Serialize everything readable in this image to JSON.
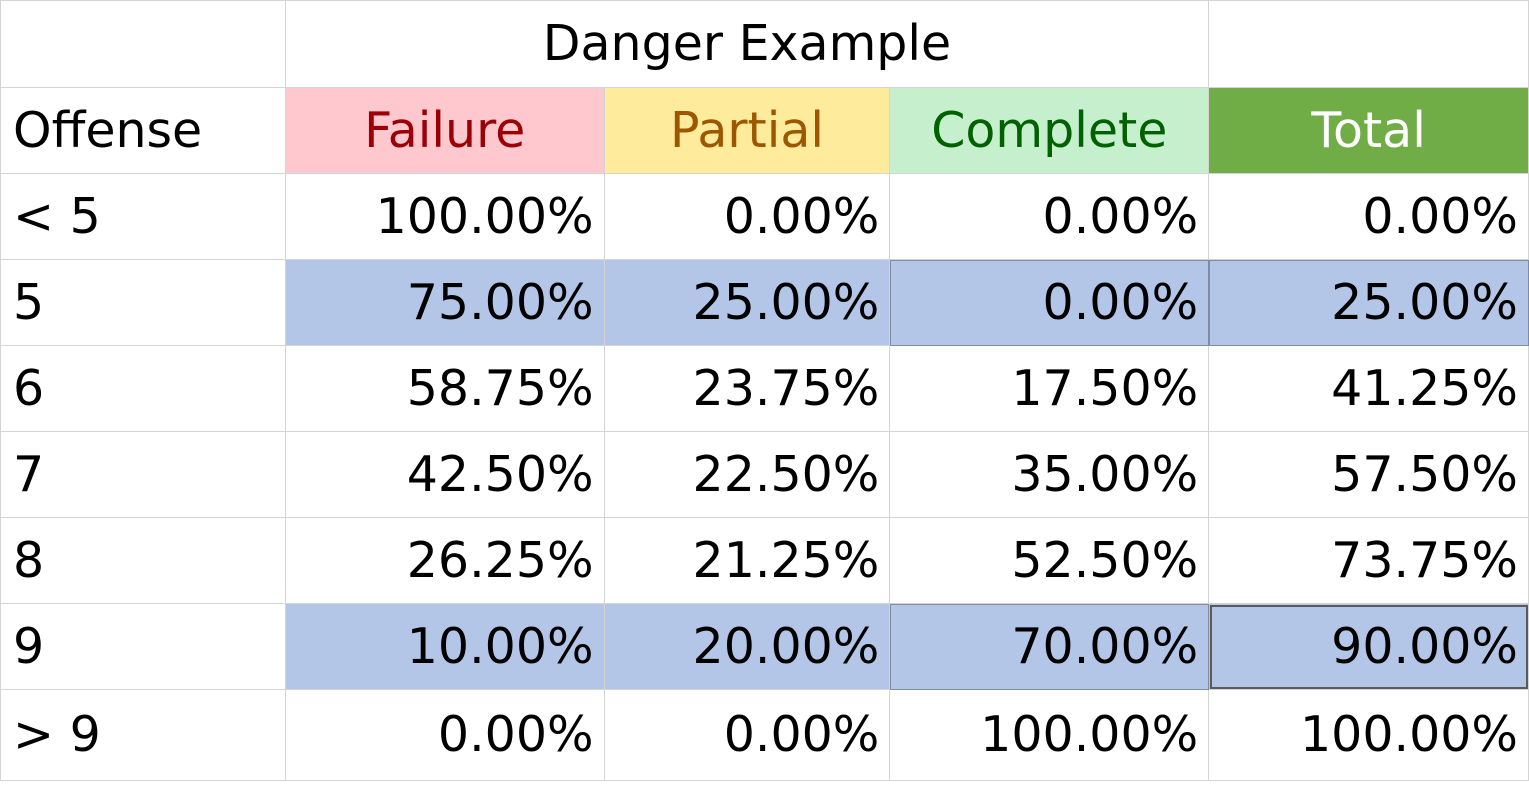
{
  "title": "Danger Example",
  "header": {
    "offense": "Offense",
    "columns": [
      {
        "label": "Failure",
        "bg": "#ffc7ce",
        "color": "#9c0006"
      },
      {
        "label": "Partial",
        "bg": "#ffeb9c",
        "color": "#9c5700"
      },
      {
        "label": "Complete",
        "bg": "#c6efce",
        "color": "#006100"
      },
      {
        "label": "Total",
        "bg": "#70ad47",
        "color": "#ffffff"
      }
    ]
  },
  "highlight_color": "#b4c6e7",
  "rows": [
    {
      "offense": "< 5",
      "failure": "100.00%",
      "partial": "0.00%",
      "complete": "0.00%",
      "total": "0.00%"
    },
    {
      "offense": "5",
      "failure": "75.00%",
      "partial": "25.00%",
      "complete": "0.00%",
      "total": "25.00%"
    },
    {
      "offense": "6",
      "failure": "58.75%",
      "partial": "23.75%",
      "complete": "17.50%",
      "total": "41.25%"
    },
    {
      "offense": "7",
      "failure": "42.50%",
      "partial": "22.50%",
      "complete": "35.00%",
      "total": "57.50%"
    },
    {
      "offense": "8",
      "failure": "26.25%",
      "partial": "21.25%",
      "complete": "52.50%",
      "total": "73.75%"
    },
    {
      "offense": "9",
      "failure": "10.00%",
      "partial": "20.00%",
      "complete": "70.00%",
      "total": "90.00%"
    },
    {
      "offense": "> 9",
      "failure": "0.00%",
      "partial": "0.00%",
      "complete": "100.00%",
      "total": "100.00%"
    }
  ]
}
